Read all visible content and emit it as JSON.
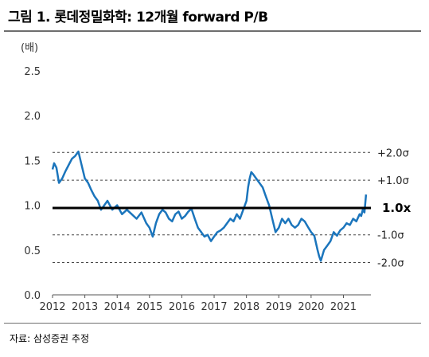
{
  "title": "그림 1. 롯데정밀화학: 12개월 forward P/B",
  "source": "자료: 삼성증권 추정",
  "colors": {
    "series": "#1b75bc",
    "reference": "#000000",
    "band": "#444444",
    "rule": "#6e6e6e"
  },
  "chart_data": {
    "type": "line",
    "ylabel": "(배)",
    "ylim": [
      0.0,
      2.5
    ],
    "yticks": [
      "0.0",
      "0.5",
      "1.0",
      "1.5",
      "2.0",
      "2.5"
    ],
    "xlim": [
      2012,
      2021.85
    ],
    "xticks": [
      "2012",
      "2013",
      "2014",
      "2015",
      "2016",
      "2017",
      "2018",
      "2019",
      "2020",
      "2021"
    ],
    "grid": false,
    "reference_line": {
      "value": 0.97,
      "label": "1.0x"
    },
    "bands": [
      {
        "label": "+2.0σ",
        "value": 1.59
      },
      {
        "label": "+1.0σ",
        "value": 1.28
      },
      {
        "label": "-1.0σ",
        "value": 0.67
      },
      {
        "label": "-2.0σ",
        "value": 0.36
      }
    ],
    "series": [
      {
        "x": [
          2012.0,
          2012.05,
          2012.12,
          2012.2,
          2012.3,
          2012.4,
          2012.5,
          2012.6,
          2012.7,
          2012.8,
          2012.9,
          2013.0,
          2013.1,
          2013.2,
          2013.3,
          2013.4,
          2013.5,
          2013.6,
          2013.7,
          2013.85,
          2014.0,
          2014.15,
          2014.3,
          2014.45,
          2014.6,
          2014.75,
          2014.9,
          2015.0,
          2015.1,
          2015.2,
          2015.3,
          2015.4,
          2015.5,
          2015.6,
          2015.7,
          2015.8,
          2015.9,
          2016.0,
          2016.1,
          2016.2,
          2016.3,
          2016.4,
          2016.5,
          2016.6,
          2016.7,
          2016.8,
          2016.9,
          2017.0,
          2017.1,
          2017.2,
          2017.3,
          2017.4,
          2017.5,
          2017.6,
          2017.7,
          2017.8,
          2017.9,
          2018.0,
          2018.05,
          2018.1,
          2018.15,
          2018.2,
          2018.3,
          2018.4,
          2018.5,
          2018.6,
          2018.7,
          2018.8,
          2018.9,
          2019.0,
          2019.1,
          2019.2,
          2019.3,
          2019.4,
          2019.5,
          2019.6,
          2019.7,
          2019.8,
          2019.9,
          2020.0,
          2020.1,
          2020.2,
          2020.25,
          2020.3,
          2020.4,
          2020.5,
          2020.6,
          2020.7,
          2020.8,
          2020.9,
          2021.0,
          2021.1,
          2021.2,
          2021.3,
          2021.4,
          2021.5,
          2021.55,
          2021.6,
          2021.65,
          2021.7
        ],
        "y": [
          1.4,
          1.47,
          1.42,
          1.25,
          1.3,
          1.38,
          1.45,
          1.52,
          1.55,
          1.6,
          1.45,
          1.3,
          1.25,
          1.17,
          1.1,
          1.05,
          0.95,
          1.0,
          1.05,
          0.95,
          1.0,
          0.9,
          0.95,
          0.9,
          0.85,
          0.92,
          0.8,
          0.75,
          0.65,
          0.8,
          0.9,
          0.95,
          0.92,
          0.85,
          0.82,
          0.9,
          0.93,
          0.85,
          0.88,
          0.93,
          0.96,
          0.85,
          0.75,
          0.7,
          0.65,
          0.67,
          0.6,
          0.65,
          0.7,
          0.72,
          0.75,
          0.8,
          0.85,
          0.82,
          0.9,
          0.85,
          0.95,
          1.05,
          1.2,
          1.3,
          1.37,
          1.35,
          1.3,
          1.25,
          1.2,
          1.1,
          1.0,
          0.85,
          0.7,
          0.75,
          0.85,
          0.8,
          0.85,
          0.78,
          0.75,
          0.78,
          0.85,
          0.82,
          0.76,
          0.7,
          0.66,
          0.5,
          0.43,
          0.38,
          0.5,
          0.55,
          0.6,
          0.7,
          0.66,
          0.72,
          0.75,
          0.8,
          0.78,
          0.85,
          0.82,
          0.9,
          0.88,
          0.95,
          0.92,
          1.12
        ]
      }
    ]
  }
}
